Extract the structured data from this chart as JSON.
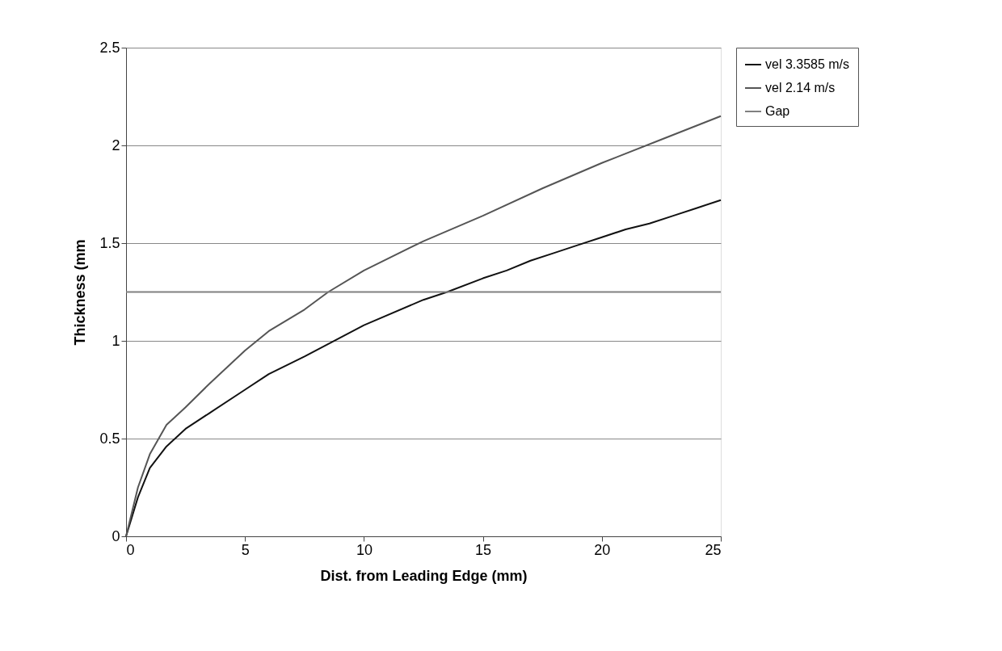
{
  "chart_data": {
    "type": "line",
    "xlabel": "Dist. from Leading Edge (mm)",
    "ylabel": "Thickness (mm",
    "xlim": [
      0,
      25
    ],
    "xticks": [
      0,
      5,
      10,
      15,
      20,
      25
    ],
    "ylim": [
      0,
      2.5
    ],
    "yticks": [
      0,
      0.5,
      1,
      1.5,
      2,
      2.5
    ],
    "grid": "y",
    "legend": "right",
    "marker": "none",
    "line_style": "solid",
    "series": [
      {
        "name": "vel 3.3585 m/s",
        "color": "#111111",
        "x": [
          0,
          0.5,
          1,
          1.7,
          2.5,
          3.5,
          5,
          6,
          7.5,
          10,
          12.5,
          13.5,
          15,
          16,
          17,
          18,
          19,
          20,
          21,
          22,
          23,
          24,
          25
        ],
        "values": [
          0,
          0.2,
          0.35,
          0.46,
          0.55,
          0.63,
          0.75,
          0.83,
          0.92,
          1.08,
          1.21,
          1.25,
          1.32,
          1.36,
          1.41,
          1.45,
          1.49,
          1.53,
          1.57,
          1.6,
          1.64,
          1.68,
          1.72
        ]
      },
      {
        "name": "vel 2.14 m/s",
        "color": "#555555",
        "x": [
          0,
          0.5,
          1,
          1.7,
          2.5,
          3.5,
          5,
          6,
          7.5,
          8.5,
          10,
          12.5,
          15,
          17.5,
          20,
          22.5,
          25
        ],
        "values": [
          0,
          0.25,
          0.42,
          0.57,
          0.66,
          0.78,
          0.95,
          1.05,
          1.16,
          1.25,
          1.36,
          1.51,
          1.64,
          1.78,
          1.91,
          2.03,
          2.15
        ]
      },
      {
        "name": "Gap",
        "color": "#808080",
        "x": [
          0,
          25
        ],
        "values": [
          1.25,
          1.25
        ]
      }
    ]
  }
}
